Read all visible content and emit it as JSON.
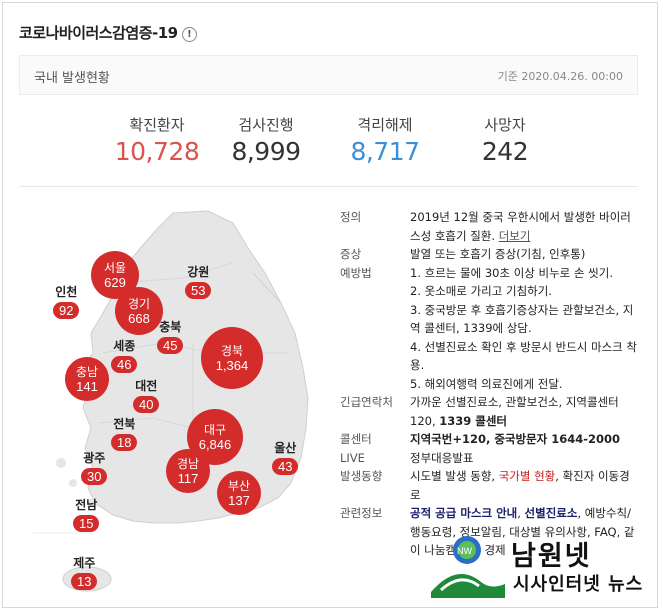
{
  "title": "코로나바이러스감염증-19",
  "info_icon": "exclamation-circle-icon",
  "subbar": {
    "label": "국내 발생현황",
    "date": "기준 2020.04.26. 00:00"
  },
  "stats": [
    {
      "label": "확진환자",
      "value": "10,728",
      "color": "#d9534f"
    },
    {
      "label": "검사진행",
      "value": "8,999",
      "color": "#333333"
    },
    {
      "label": "격리해제",
      "value": "8,717",
      "color": "#3b8fd9"
    },
    {
      "label": "사망자",
      "value": "242",
      "color": "#333333"
    }
  ],
  "regions": [
    {
      "name": "서울",
      "count": "629"
    },
    {
      "name": "인천",
      "count": "92"
    },
    {
      "name": "경기",
      "count": "668"
    },
    {
      "name": "강원",
      "count": "53"
    },
    {
      "name": "충북",
      "count": "45"
    },
    {
      "name": "세종",
      "count": "46"
    },
    {
      "name": "충남",
      "count": "141"
    },
    {
      "name": "대전",
      "count": "40"
    },
    {
      "name": "경북",
      "count": "1,364"
    },
    {
      "name": "대구",
      "count": "6,846"
    },
    {
      "name": "전북",
      "count": "18"
    },
    {
      "name": "광주",
      "count": "30"
    },
    {
      "name": "경남",
      "count": "117"
    },
    {
      "name": "울산",
      "count": "43"
    },
    {
      "name": "부산",
      "count": "137"
    },
    {
      "name": "전남",
      "count": "15"
    },
    {
      "name": "제주",
      "count": "13"
    }
  ],
  "info": {
    "def_k": "정의",
    "def_v": "2019년 12월 중국 우한시에서 발생한 바이러스성 호흡기 질환.",
    "def_more": "더보기",
    "sym_k": "증상",
    "sym_v": "발열 또는 호흡기 증상(기침, 인후통)",
    "prev_k": "예방법",
    "prev_items": [
      "1. 흐르는 물에 30초 이상 비누로 손 씻기.",
      "2. 옷소매로 가리고 기침하기.",
      "3. 중국방문 후 호흡기증상자는 관할보건소, 지역 콜센터, 1339에 상담.",
      "4. 선별진료소 확인 후 방문시 반드시 마스크 착용.",
      "5. 해외여행력 의료진에게 전달."
    ],
    "contact_k": "긴급연락처",
    "contact_v": "가까운 선별진료소, 관할보건소, 지역콜센터 120,",
    "contact_bold": "1339 콜센터",
    "call_k": "콜센터",
    "call_v": "지역국번+120, 중국방문자 1644-2000",
    "live_k": "LIVE",
    "live_v": "정부대응발표",
    "trend_k": "발생동향",
    "trend_a": "시도별 발생 동향",
    "trend_b": "국가별 현황",
    "trend_c": "확진자 이동경로",
    "rel_k": "관련정보",
    "rel_a": "공적 공급 마스크 안내",
    "rel_b": "선별진료소",
    "rel_c": "예방수칙/행동요령, 정보알림, 대상별 유의사항, FAQ, 같이",
    "rel_d": "나눔캠페인, 경제"
  },
  "watermark": {
    "line1": "남원넷",
    "line2": "시사인터넷 뉴스"
  }
}
